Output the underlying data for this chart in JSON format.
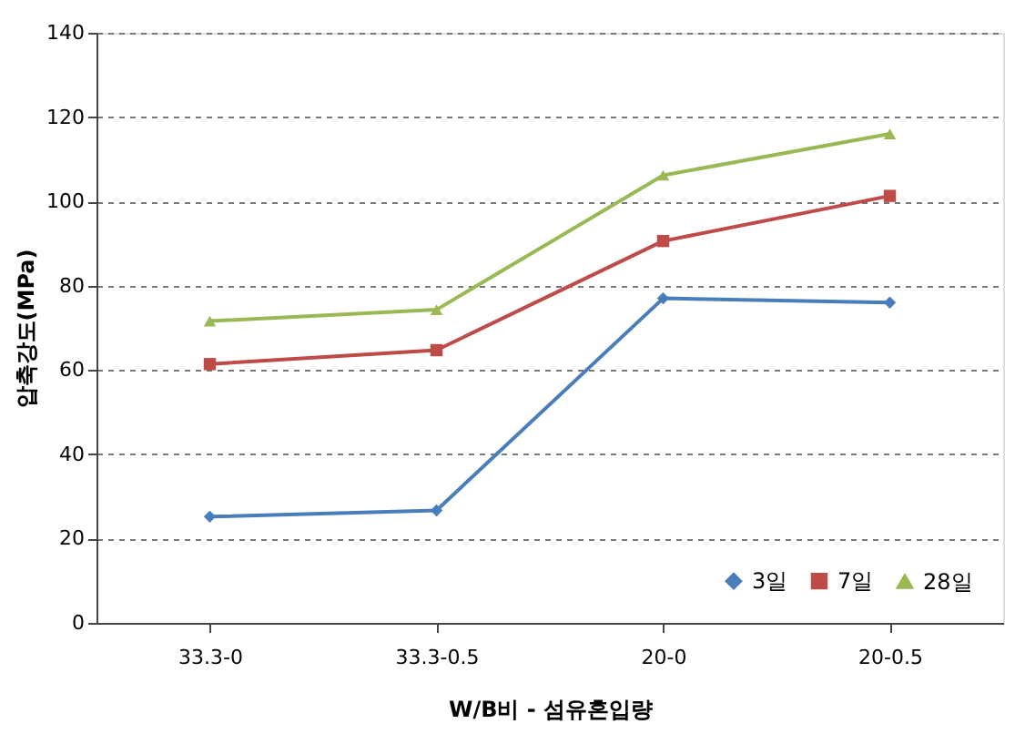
{
  "chart_data": {
    "type": "line",
    "xlabel": "W/B비 - 섬유혼입량",
    "ylabel": "압축강도(MPa)",
    "categories": [
      "33.3-0",
      "33.3-0.5",
      "20-0",
      "20-0.5"
    ],
    "series": [
      {
        "name": "3일",
        "color": "#4a7ebb",
        "marker": "diamond",
        "values": [
          25.2,
          26.7,
          77,
          76
        ]
      },
      {
        "name": "7일",
        "color": "#be4b48",
        "marker": "square",
        "values": [
          61.4,
          64.7,
          90.6,
          101.3
        ]
      },
      {
        "name": "28일",
        "color": "#98b954",
        "marker": "triangle",
        "values": [
          71.6,
          74.3,
          106.2,
          116
        ]
      }
    ],
    "ylim": [
      0,
      140
    ],
    "yticks": [
      0,
      20,
      40,
      60,
      80,
      100,
      120,
      140
    ],
    "grid": "y",
    "legend": "bottom right",
    "line_style": "solid"
  }
}
